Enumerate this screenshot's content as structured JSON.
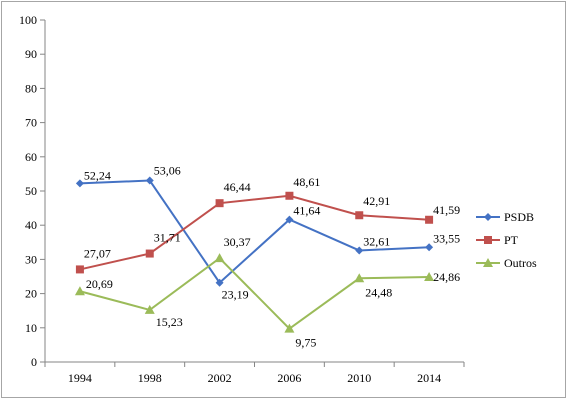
{
  "chart_data": {
    "type": "line",
    "title": "",
    "xlabel": "",
    "ylabel": "",
    "categories": [
      "1994",
      "1998",
      "2002",
      "2006",
      "2010",
      "2014"
    ],
    "ylim": [
      0,
      100
    ],
    "yticks": [
      "0",
      "10",
      "20",
      "30",
      "40",
      "50",
      "60",
      "70",
      "80",
      "90",
      "100"
    ],
    "grid": false,
    "legend_position": "right",
    "series": [
      {
        "name": "PSDB",
        "color": "#4472c4",
        "marker": "diamond",
        "values": [
          52.24,
          53.06,
          23.19,
          41.64,
          32.61,
          33.55
        ],
        "labels": [
          "52,24",
          "53,06",
          "23,19",
          "41,64",
          "32,61",
          "33,55"
        ]
      },
      {
        "name": "PT",
        "color": "#c0504d",
        "marker": "square",
        "values": [
          27.07,
          31.71,
          46.44,
          48.61,
          42.91,
          41.59
        ],
        "labels": [
          "27,07",
          "31,71",
          "46,44",
          "48,61",
          "42,91",
          "41,59"
        ]
      },
      {
        "name": "Outros",
        "color": "#9bbb59",
        "marker": "triangle",
        "values": [
          20.69,
          15.23,
          30.37,
          9.75,
          24.48,
          24.86
        ],
        "labels": [
          "20,69",
          "15,23",
          "30,37",
          "9,75",
          "24,48",
          "24,86"
        ]
      }
    ]
  }
}
